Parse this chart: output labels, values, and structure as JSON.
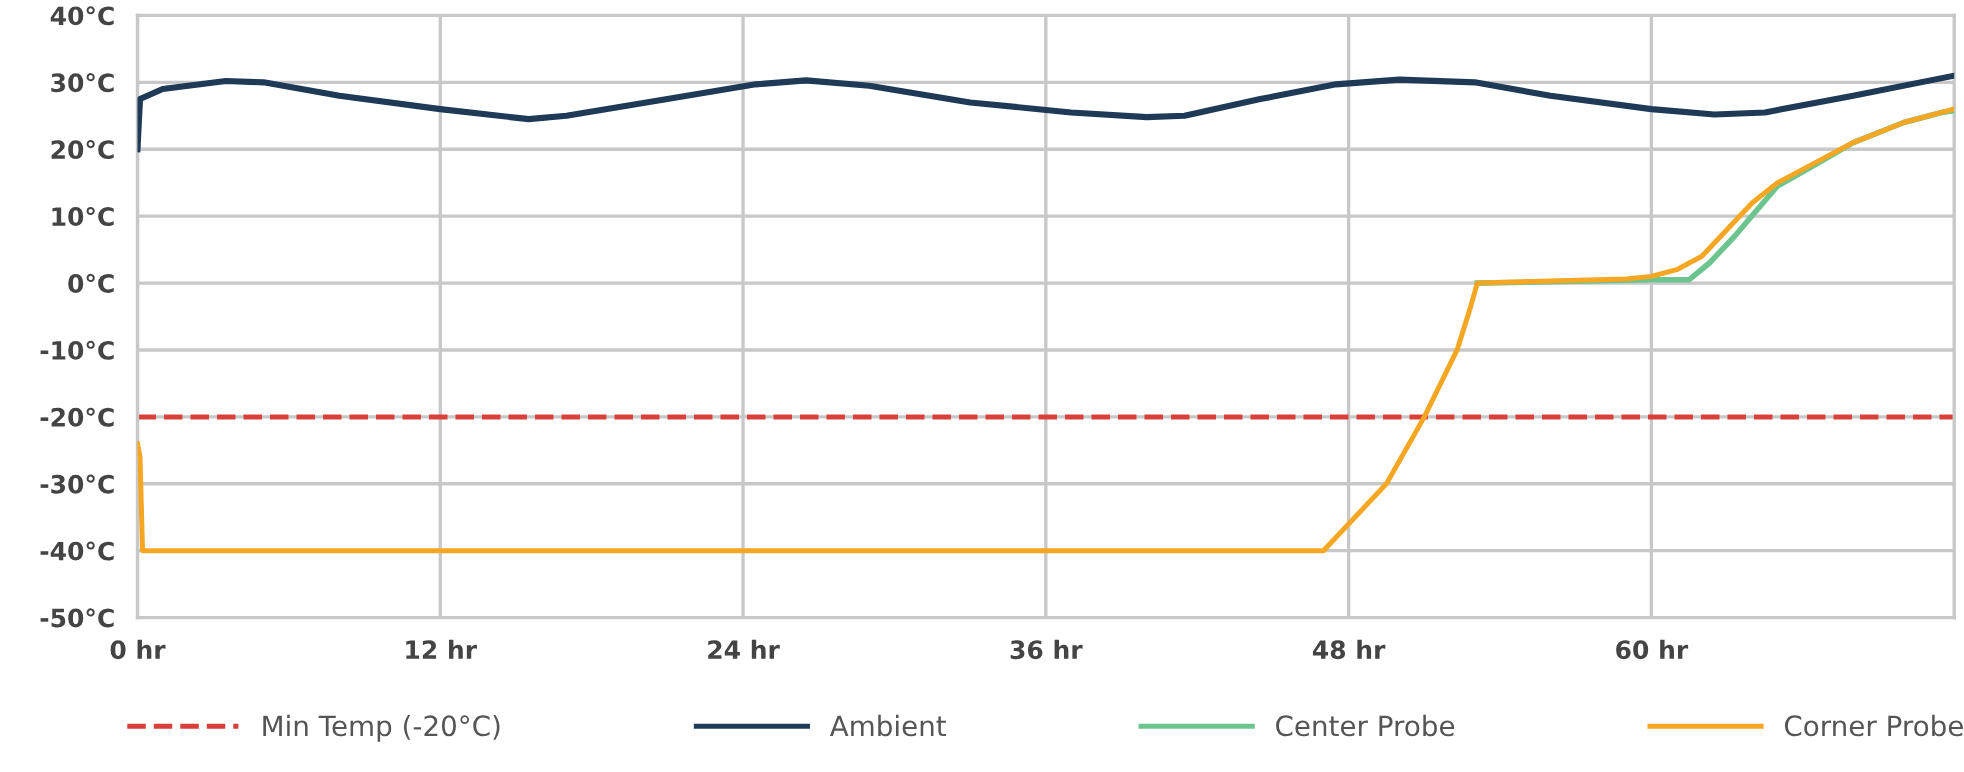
{
  "chart_data": {
    "type": "line",
    "xlim": [
      0,
      72
    ],
    "ylim": [
      -50,
      40
    ],
    "xticks": [
      {
        "value": 0,
        "label": "0 hr"
      },
      {
        "value": 12,
        "label": "12 hr"
      },
      {
        "value": 24,
        "label": "24 hr"
      },
      {
        "value": 36,
        "label": "36 hr"
      },
      {
        "value": 48,
        "label": "48 hr"
      },
      {
        "value": 60,
        "label": "60 hr"
      }
    ],
    "yticks": [
      {
        "value": -50,
        "label": "-50°C"
      },
      {
        "value": -40,
        "label": "-40°C"
      },
      {
        "value": -30,
        "label": "-30°C"
      },
      {
        "value": -20,
        "label": "-20°C"
      },
      {
        "value": -10,
        "label": "-10°C"
      },
      {
        "value": 0,
        "label": "0°C"
      },
      {
        "value": 10,
        "label": "10°C"
      },
      {
        "value": 20,
        "label": "20°C"
      },
      {
        "value": 30,
        "label": "30°C"
      },
      {
        "value": 40,
        "label": "40°C"
      }
    ],
    "grid": true,
    "legend": "bottom",
    "line_style": "solid",
    "marker": "none",
    "ref_lines": [
      {
        "axis": "y",
        "value": -20,
        "label": "Min Temp (-20°C)",
        "color": "#d9403a",
        "line_style": "dashed"
      }
    ],
    "series": [
      {
        "name": "Ambient",
        "color": "#1e3a56",
        "x": [
          0,
          0.1,
          1,
          3.5,
          5,
          8,
          12,
          15.5,
          17,
          21,
          24.5,
          26.5,
          29,
          33,
          37,
          40,
          41.5,
          44.5,
          47.5,
          50,
          53,
          56,
          60,
          62.5,
          64.5,
          68,
          72
        ],
        "values": [
          20,
          27.5,
          29,
          30.2,
          30,
          28,
          26,
          24.5,
          25,
          27.5,
          29.7,
          30.3,
          29.5,
          27,
          25.5,
          24.8,
          25,
          27.5,
          29.7,
          30.4,
          30,
          28,
          26,
          25.2,
          25.5,
          28,
          31
        ]
      },
      {
        "name": "Center Probe",
        "color": "#6cc48e",
        "x": [
          53.1,
          56,
          60,
          61.5,
          62.3,
          63.3,
          64.2,
          65,
          66.5,
          68,
          70,
          71.5,
          72
        ],
        "values": [
          0,
          0.2,
          0.5,
          0.5,
          3,
          7,
          11,
          14.5,
          17.7,
          21,
          24,
          25.5,
          25.8
        ]
      },
      {
        "name": "Corner Probe",
        "color": "#f5a623",
        "x": [
          0,
          0.1,
          0.2,
          47,
          48,
          49.5,
          51,
          52.3,
          52.8,
          53.1,
          56,
          59,
          60,
          61,
          62,
          63,
          64,
          65,
          66.5,
          68,
          70,
          71.5,
          72
        ],
        "values": [
          -24,
          -26,
          -40,
          -40,
          -36,
          -30,
          -20,
          -10,
          -4,
          0,
          0.3,
          0.6,
          1,
          2,
          4,
          8,
          12,
          15,
          18,
          21,
          24,
          25.5,
          26
        ]
      }
    ]
  }
}
